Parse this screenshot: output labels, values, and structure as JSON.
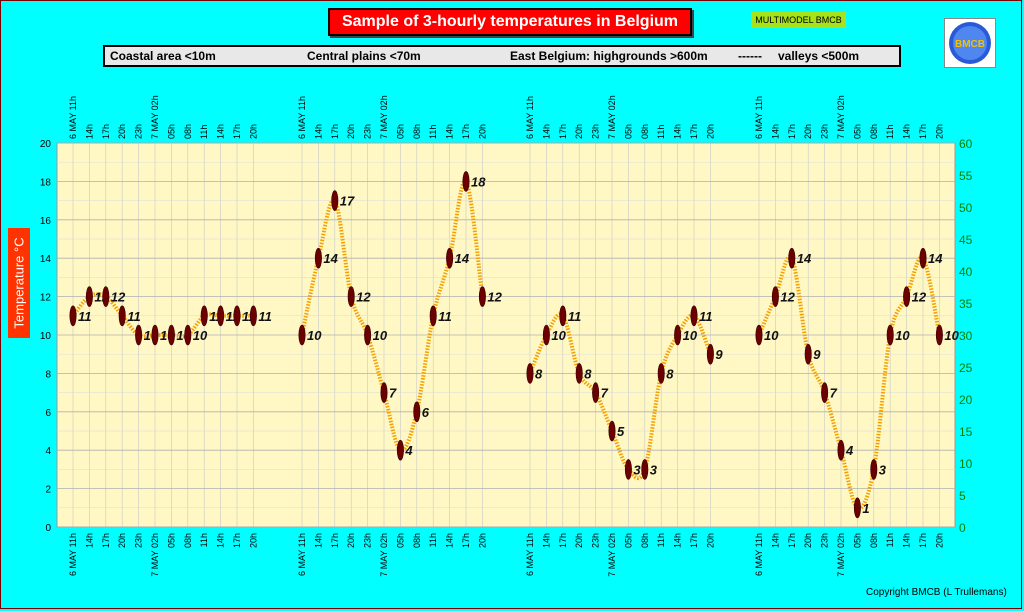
{
  "title": "Sample of 3-hourly temperatures in Belgium",
  "model_badge": "MULTIMODEL BMCB",
  "logo_text": "BMCB",
  "legend": {
    "coastal": "Coastal area <10m",
    "central": "Central plains <70m",
    "east": "East Belgium: highgrounds >600m",
    "dashes": "------",
    "valleys": "valleys <500m"
  },
  "y_axis_label": "Temperature   °C",
  "copyright": "Copyright BMCB (L Trullemans)",
  "colors": {
    "background": "#00ffff",
    "plot_area": "#fff8c4",
    "line": "#f4a000",
    "marker": "#6b0000",
    "title_bg": "#ff0000",
    "axis_right": "#008000"
  },
  "chart_data": {
    "type": "line",
    "ylim": [
      0,
      20
    ],
    "y_ticks": [
      "0",
      "2",
      "4",
      "6",
      "8",
      "10",
      "12",
      "14",
      "16",
      "18",
      "20"
    ],
    "y2lim": [
      0,
      60
    ],
    "y2_ticks": [
      "0",
      "5",
      "10",
      "15",
      "20",
      "25",
      "30",
      "35",
      "40",
      "45",
      "50",
      "55",
      "60"
    ],
    "x_tick_labels": [
      "6 MAY 11h",
      "14h",
      "17h",
      "20h",
      "23h",
      "7 MAY 02h",
      "05h",
      "08h",
      "11h",
      "14h",
      "17h",
      "20h"
    ],
    "series": [
      {
        "values": [
          11,
          12,
          12,
          11,
          10,
          10,
          10,
          10,
          11,
          11,
          11,
          11
        ],
        "labels": [
          "11",
          "12",
          "12",
          "11",
          "10",
          "10",
          "10",
          "10",
          "11",
          "11",
          "11",
          "11"
        ]
      },
      {
        "values": [
          10,
          14,
          17,
          12,
          10,
          7,
          4,
          6,
          11,
          14,
          18,
          12
        ],
        "labels": [
          "10",
          "14",
          "17",
          "12",
          "10",
          "7",
          "4",
          "6",
          "11",
          "14",
          "18",
          "12"
        ]
      },
      {
        "values": [
          8,
          10,
          11,
          8,
          7,
          5,
          3,
          3,
          8,
          10,
          11,
          9
        ],
        "labels": [
          "8",
          "10",
          "11",
          "8",
          "7",
          "5",
          "3",
          "3",
          "8",
          "10",
          "11",
          "9"
        ]
      },
      {
        "values": [
          10,
          12,
          14,
          9,
          7,
          4,
          1,
          3,
          10,
          12,
          14,
          10
        ],
        "labels": [
          "10",
          "12",
          "14",
          "9",
          "7",
          "4",
          "1",
          "3",
          "10",
          "12",
          "14",
          "10"
        ]
      }
    ],
    "grid": true
  }
}
